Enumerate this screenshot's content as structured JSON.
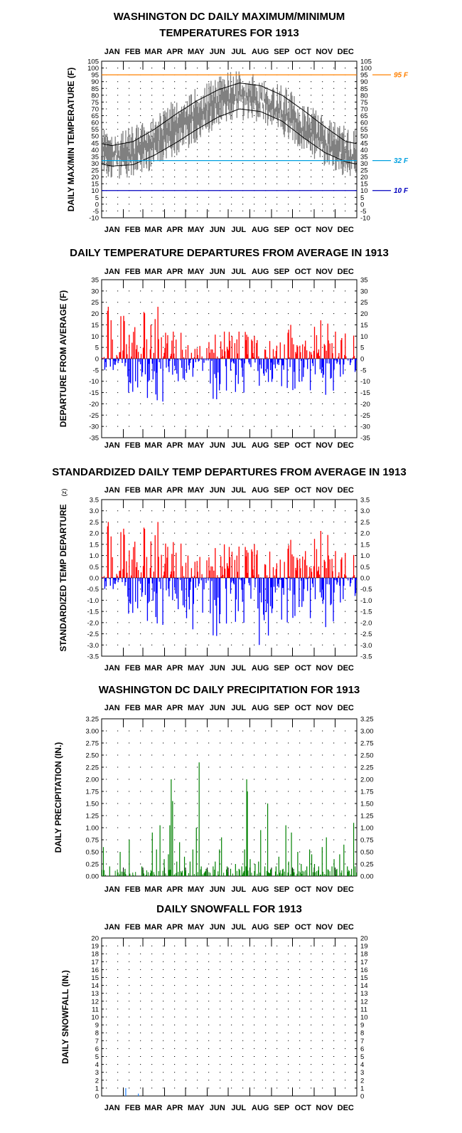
{
  "months": [
    "JAN",
    "FEB",
    "MAR",
    "APR",
    "MAY",
    "JUN",
    "JUL",
    "AUG",
    "SEP",
    "OCT",
    "NOV",
    "DEC"
  ],
  "colors": {
    "series_gray": "#808080",
    "normal_line": "#000000",
    "ref_95": "#ff8000",
    "ref_32": "#00a0e0",
    "ref_10": "#0000c0",
    "positive": "#ff0000",
    "negative": "#0000ff",
    "precip": "#008000",
    "snow": "#2080ff"
  },
  "chart_data": [
    {
      "type": "line",
      "title": "WASHINGTON DC DAILY MAXIMUM/MINIMUM",
      "subtitle": "TEMPERATURES FOR 1913",
      "ylabel": "DAILY MAX/MIN TEMPERATURE (F)",
      "ylim": [
        -10,
        105
      ],
      "ytick_step": 5,
      "grid": "dotted",
      "reference_lines": [
        {
          "value": 95,
          "label": "95 F",
          "color_key": "ref_95"
        },
        {
          "value": 32,
          "label": "32 F",
          "color_key": "ref_32"
        },
        {
          "value": 10,
          "label": "10 F",
          "color_key": "ref_10"
        }
      ],
      "series": [
        {
          "name": "",
          "kind": "daily_max_min_monthly_mean",
          "max": [
            45,
            46,
            54,
            67,
            75,
            85,
            89,
            84,
            77,
            66,
            55,
            46
          ],
          "min": [
            29,
            28,
            36,
            45,
            55,
            66,
            71,
            68,
            60,
            47,
            38,
            30
          ]
        },
        {
          "name": "",
          "kind": "normal_high",
          "values": [
            43,
            46,
            55,
            66,
            76,
            84,
            89,
            87,
            80,
            69,
            57,
            46
          ]
        },
        {
          "name": "",
          "kind": "normal_low",
          "values": [
            28,
            29,
            36,
            45,
            55,
            64,
            70,
            68,
            61,
            49,
            38,
            31
          ]
        }
      ]
    },
    {
      "type": "bar",
      "title": "DAILY TEMPERATURE DEPARTURES FROM AVERAGE IN 1913",
      "ylabel": "DEPARTURE FROM AVERAGE (F)",
      "ylim": [
        -35,
        35
      ],
      "ytick_step": 5,
      "grid": "dotted",
      "monthly_extremes": [
        {
          "month": "JAN",
          "max": 23,
          "min": -5
        },
        {
          "month": "FEB",
          "max": 19,
          "min": -15
        },
        {
          "month": "MAR",
          "max": 23,
          "min": -19
        },
        {
          "month": "APR",
          "max": 12,
          "min": -10
        },
        {
          "month": "MAY",
          "max": 6,
          "min": -8
        },
        {
          "month": "JUN",
          "max": 12,
          "min": -18
        },
        {
          "month": "JUL",
          "max": 12,
          "min": -15
        },
        {
          "month": "AUG",
          "max": 10,
          "min": -12
        },
        {
          "month": "SEP",
          "max": 15,
          "min": -15
        },
        {
          "month": "OCT",
          "max": 8,
          "min": -14
        },
        {
          "month": "NOV",
          "max": 17,
          "min": -16
        },
        {
          "month": "DEC",
          "max": 12,
          "min": -8
        }
      ]
    },
    {
      "type": "bar",
      "title": "STANDARDIZED DAILY TEMP DEPARTURES FROM AVERAGE IN 1913",
      "ylabel": "STANDARDIZED TEMP DEPARTURE",
      "ylabel_unit": "(z)",
      "ylim": [
        -3.5,
        3.5
      ],
      "ytick_step": 0.5,
      "grid": "dotted",
      "monthly_extremes": [
        {
          "month": "JAN",
          "max": 2.5,
          "min": -0.5
        },
        {
          "month": "FEB",
          "max": 2.2,
          "min": -1.6
        },
        {
          "month": "MAR",
          "max": 2.5,
          "min": -2.1
        },
        {
          "month": "APR",
          "max": 1.6,
          "min": -1.4
        },
        {
          "month": "MAY",
          "max": 1.0,
          "min": -2.3
        },
        {
          "month": "JUN",
          "max": 1.5,
          "min": -2.6
        },
        {
          "month": "JUL",
          "max": 1.4,
          "min": -2.0
        },
        {
          "month": "AUG",
          "max": 1.5,
          "min": -3.0
        },
        {
          "month": "SEP",
          "max": 1.7,
          "min": -2.3
        },
        {
          "month": "OCT",
          "max": 1.2,
          "min": -1.8
        },
        {
          "month": "NOV",
          "max": 2.1,
          "min": -2.2
        },
        {
          "month": "DEC",
          "max": 1.2,
          "min": -1.1
        }
      ]
    },
    {
      "type": "bar",
      "title": "WASHINGTON DC DAILY PRECIPITATION FOR 1913",
      "ylabel": "DAILY PRECIPITATION (IN.)",
      "ylim": [
        0,
        3.25
      ],
      "ytick_step": 0.25,
      "ytick_decimals": 2,
      "grid": "dotted",
      "events": [
        {
          "day": 3,
          "value": 0.6
        },
        {
          "day": 12,
          "value": 0.2
        },
        {
          "day": 27,
          "value": 0.5
        },
        {
          "day": 34,
          "value": 0.15
        },
        {
          "day": 40,
          "value": 0.75
        },
        {
          "day": 58,
          "value": 0.2
        },
        {
          "day": 73,
          "value": 0.9
        },
        {
          "day": 79,
          "value": 0.55
        },
        {
          "day": 84,
          "value": 1.05
        },
        {
          "day": 90,
          "value": 0.35
        },
        {
          "day": 96,
          "value": 0.45
        },
        {
          "day": 98,
          "value": 1.05
        },
        {
          "day": 100,
          "value": 2.0
        },
        {
          "day": 102,
          "value": 1.55
        },
        {
          "day": 108,
          "value": 0.3
        },
        {
          "day": 112,
          "value": 0.7
        },
        {
          "day": 119,
          "value": 0.4
        },
        {
          "day": 127,
          "value": 0.3
        },
        {
          "day": 131,
          "value": 0.55
        },
        {
          "day": 136,
          "value": 1.0
        },
        {
          "day": 140,
          "value": 2.35
        },
        {
          "day": 143,
          "value": 0.2
        },
        {
          "day": 150,
          "value": 0.15
        },
        {
          "day": 160,
          "value": 0.2
        },
        {
          "day": 163,
          "value": 0.3
        },
        {
          "day": 169,
          "value": 0.55
        },
        {
          "day": 172,
          "value": 0.8
        },
        {
          "day": 180,
          "value": 0.2
        },
        {
          "day": 185,
          "value": 0.15
        },
        {
          "day": 192,
          "value": 0.25
        },
        {
          "day": 197,
          "value": 0.15
        },
        {
          "day": 201,
          "value": 0.2
        },
        {
          "day": 205,
          "value": 0.55
        },
        {
          "day": 207,
          "value": 0.2
        },
        {
          "day": 208,
          "value": 2.0
        },
        {
          "day": 209,
          "value": 1.75
        },
        {
          "day": 213,
          "value": 0.35
        },
        {
          "day": 220,
          "value": 0.25
        },
        {
          "day": 225,
          "value": 0.3
        },
        {
          "day": 228,
          "value": 0.95
        },
        {
          "day": 234,
          "value": 0.2
        },
        {
          "day": 238,
          "value": 1.5
        },
        {
          "day": 243,
          "value": 0.15
        },
        {
          "day": 250,
          "value": 0.2
        },
        {
          "day": 254,
          "value": 0.4
        },
        {
          "day": 260,
          "value": 0.15
        },
        {
          "day": 264,
          "value": 1.05
        },
        {
          "day": 268,
          "value": 0.3
        },
        {
          "day": 272,
          "value": 0.9
        },
        {
          "day": 275,
          "value": 0.15
        },
        {
          "day": 281,
          "value": 0.5
        },
        {
          "day": 286,
          "value": 0.25
        },
        {
          "day": 294,
          "value": 0.2
        },
        {
          "day": 298,
          "value": 0.55
        },
        {
          "day": 301,
          "value": 0.45
        },
        {
          "day": 305,
          "value": 0.25
        },
        {
          "day": 311,
          "value": 0.2
        },
        {
          "day": 316,
          "value": 0.6
        },
        {
          "day": 322,
          "value": 0.8
        },
        {
          "day": 330,
          "value": 0.2
        },
        {
          "day": 333,
          "value": 0.35
        },
        {
          "day": 337,
          "value": 0.15
        },
        {
          "day": 341,
          "value": 0.45
        },
        {
          "day": 347,
          "value": 0.65
        },
        {
          "day": 352,
          "value": 0.2
        },
        {
          "day": 358,
          "value": 0.15
        },
        {
          "day": 361,
          "value": 1.1
        },
        {
          "day": 363,
          "value": 0.2
        }
      ]
    },
    {
      "type": "bar",
      "title": "DAILY SNOWFALL FOR 1913",
      "ylabel": "DAILY SNOWFALL (IN.)",
      "ylim": [
        0,
        20
      ],
      "ytick_step": 1,
      "grid": "dotted",
      "events": [
        {
          "day": 35,
          "value": 1.0
        },
        {
          "day": 53,
          "value": 0.3
        }
      ]
    }
  ]
}
